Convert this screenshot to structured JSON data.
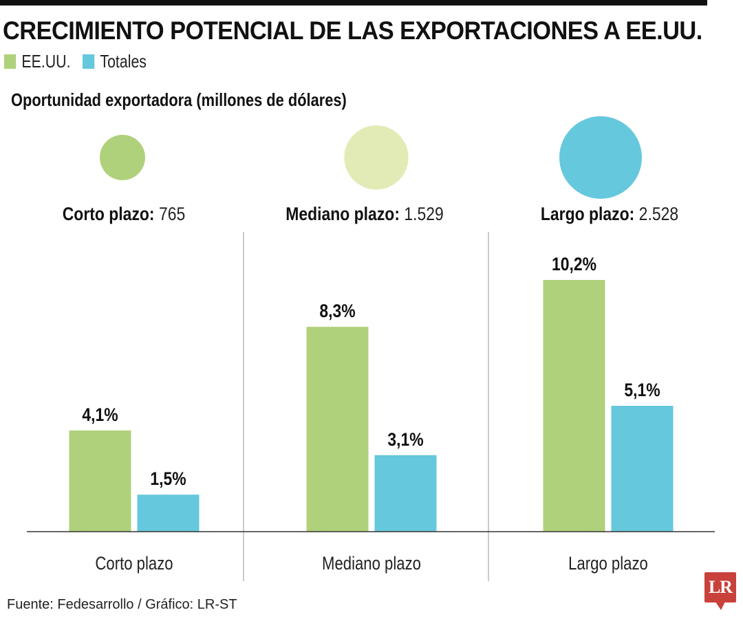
{
  "header": {
    "title": "CRECIMIENTO POTENCIAL DE LAS EXPORTACIONES A EE.UU.",
    "subtitle": "Oportunidad exportadora (millones de dólares)"
  },
  "colors": {
    "eeuu": "#b0d17b",
    "totales": "#66c8dd",
    "mediano_bubble": "#e2ebb6",
    "axis": "#333333",
    "divider": "#aaaaaa",
    "logo": "#c9413b"
  },
  "bubbles": [
    {
      "label": "Corto plazo:",
      "value": "765",
      "amount": 765,
      "color": "#b0d17b"
    },
    {
      "label": "Mediano plazo:",
      "value": "1.529",
      "amount": 1529,
      "color": "#e2ebb6"
    },
    {
      "label": "Largo plazo:",
      "value": "2.528",
      "amount": 2528,
      "color": "#66c8dd"
    }
  ],
  "chart_data": {
    "type": "bar",
    "title": "CRECIMIENTO POTENCIAL DE LAS EXPORTACIONES A EE.UU.",
    "xlabel": "",
    "ylabel": "",
    "categories": [
      "Corto plazo",
      "Mediano plazo",
      "Largo plazo"
    ],
    "series": [
      {
        "name": "EE.UU.",
        "color": "#b0d17b",
        "values": [
          4.1,
          8.3,
          10.2
        ],
        "labels": [
          "4,1%",
          "8,3%",
          "10,2%"
        ]
      },
      {
        "name": "Totales",
        "color": "#66c8dd",
        "values": [
          1.5,
          3.1,
          5.1
        ],
        "labels": [
          "1,5%",
          "3,1%",
          "5,1%"
        ]
      }
    ],
    "ylim": [
      0,
      10.2
    ],
    "grid": false,
    "legend": "top-left"
  },
  "footer": {
    "source": "Fuente: Fedesarrollo / Gráfico: LR-ST",
    "logo_text": "LR"
  }
}
